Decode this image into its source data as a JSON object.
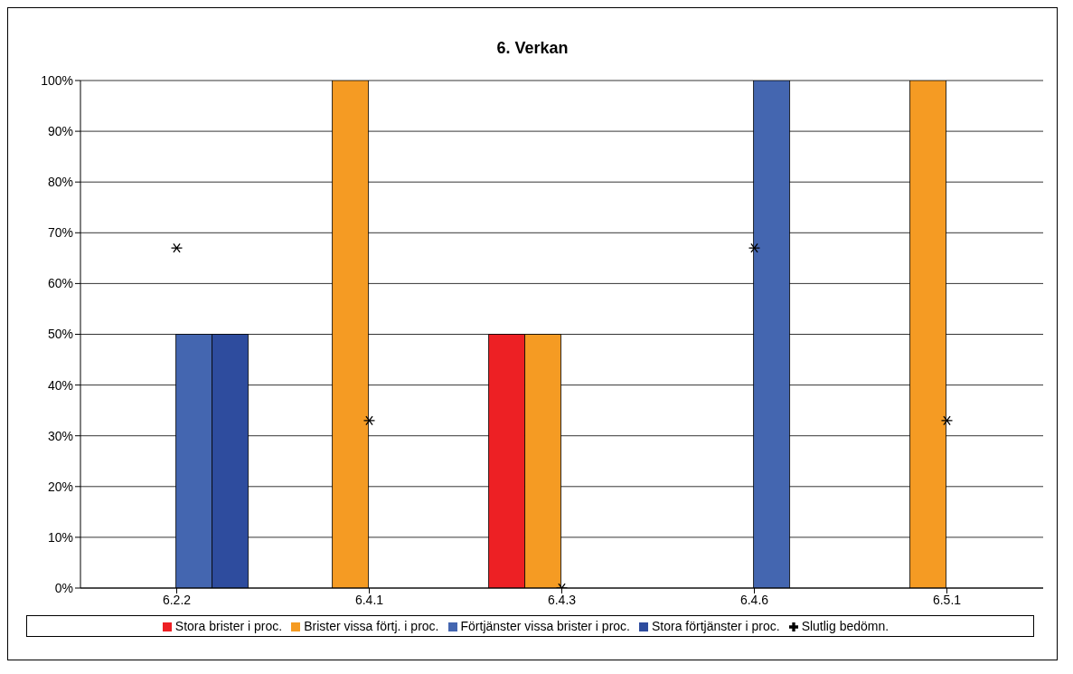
{
  "chart_data": {
    "type": "bar",
    "title": "6. Verkan",
    "categories": [
      "6.2.2",
      "6.4.1",
      "6.4.3",
      "6.4.6",
      "6.5.1"
    ],
    "series": [
      {
        "name": "Stora brister i proc.",
        "color": "#ed2024",
        "values": [
          null,
          null,
          50,
          null,
          null
        ]
      },
      {
        "name": "Brister vissa förtj. i proc.",
        "color": "#f59b23",
        "values": [
          null,
          100,
          50,
          null,
          100
        ]
      },
      {
        "name": "Förtjänster vissa brister i proc.",
        "color": "#4466b0",
        "values": [
          50,
          null,
          null,
          100,
          null
        ]
      },
      {
        "name": "Stora förtjänster i proc.",
        "color": "#2e4c9e",
        "values": [
          50,
          null,
          null,
          null,
          null
        ]
      },
      {
        "name": "Slutlig bedömn.",
        "type": "scatter",
        "color": "#000000",
        "marker": "cross",
        "values": [
          67,
          33,
          0,
          67,
          33
        ]
      }
    ],
    "ylim": [
      0,
      100
    ],
    "yticks": [
      {
        "value": 0,
        "label": "0%"
      },
      {
        "value": 10,
        "label": "10%"
      },
      {
        "value": 20,
        "label": "20%"
      },
      {
        "value": 30,
        "label": "30%"
      },
      {
        "value": 40,
        "label": "40%"
      },
      {
        "value": 50,
        "label": "50%"
      },
      {
        "value": 60,
        "label": "60%"
      },
      {
        "value": 70,
        "label": "70%"
      },
      {
        "value": 80,
        "label": "80%"
      },
      {
        "value": 90,
        "label": "90%"
      },
      {
        "value": 100,
        "label": "100%"
      }
    ],
    "grid": "y",
    "legend": "bottom"
  }
}
